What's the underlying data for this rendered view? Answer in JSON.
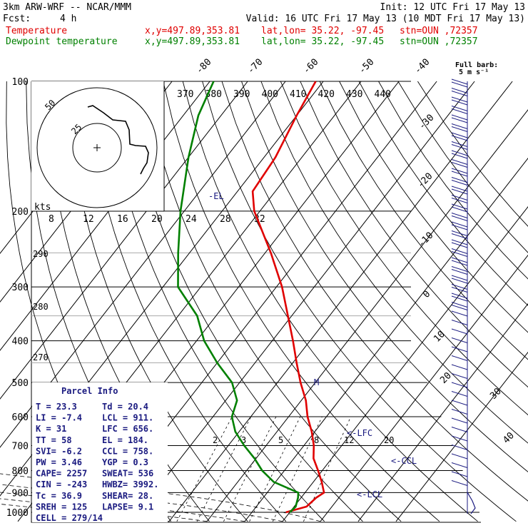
{
  "header": {
    "model": "3km ARW-WRF -- NCAR/MMM",
    "fcst_label": "Fcst:",
    "fcst_value": "4 h",
    "init": "Init: 12 UTC Fri 17 May 13",
    "valid": "Valid: 16 UTC Fri 17 May 13 (10 MDT Fri 17 May 13)",
    "temp_line": {
      "name": "Temperature",
      "xy": "x,y=497.89,353.81",
      "latlon": "lat,lon= 35.22, -97.45",
      "stn": "stn=OUN ,72357"
    },
    "dew_line": {
      "name": "Dewpoint temperature",
      "xy": "x,y=497.89,353.81",
      "latlon": "lat,lon= 35.22, -97.45",
      "stn": "stn=OUN ,72357"
    }
  },
  "barb_legend": {
    "line1": "Full barb:",
    "line2": "5 m s⁻¹"
  },
  "pressure_labels": [
    "100",
    "200",
    "300",
    "400",
    "500",
    "600",
    "700",
    "800",
    "900",
    "1000"
  ],
  "theta_labels": [
    "370",
    "380",
    "390",
    "400",
    "410",
    "420",
    "430",
    "440"
  ],
  "temp_labels_top": [
    "-80",
    "-70",
    "-60",
    "-50",
    "-40"
  ],
  "temp_labels_right": [
    "-30",
    "-20",
    "-10",
    "0",
    "10"
  ],
  "temp_labels_low": [
    "20",
    "30",
    "40"
  ],
  "mixing_labels": [
    "2",
    "3",
    "5",
    "8",
    "12",
    "20"
  ],
  "thetae_labels": [
    "290",
    "280",
    "270"
  ],
  "hodograph": {
    "kts_label": "kts",
    "ring_labels": [
      "50",
      "25"
    ],
    "x_ticks": [
      "8",
      "12",
      "16",
      "20",
      "24",
      "28",
      "32"
    ]
  },
  "markers": {
    "el": "-EL",
    "lfc": "<-LFC",
    "ccl": "<-CCL",
    "lcl": "<-LCL",
    "m": "M"
  },
  "parcel": {
    "title": "Parcel Info",
    "rows": [
      [
        "T  =   23.3",
        "Td =  20.4"
      ],
      [
        "LI =   -7.4",
        "LCL =  911."
      ],
      [
        "K  =     31",
        "LFC = 656."
      ],
      [
        "TT =     58",
        "EL  =  184."
      ],
      [
        "SVI=   -6.2",
        "CCL =  758."
      ],
      [
        "PW =   3.46",
        "YGP =   0.3"
      ],
      [
        "CAPE=  2257",
        "SWEAT=  536"
      ],
      [
        "CIN =  -243",
        "HWBZ= 3992."
      ],
      [
        "Tc =   36.9",
        "SHEAR=  28."
      ],
      [
        "SREH =  125",
        "LAPSE=  9.1"
      ],
      [
        "CELL = 279/14",
        ""
      ]
    ]
  },
  "colors": {
    "temperature": "#e00000",
    "dewpoint": "#008000",
    "text_label": "#1a1a80"
  },
  "chart_data": {
    "type": "line",
    "chart_kind": "skew-T log-p sounding",
    "yscale": "log",
    "ylim": [
      1000,
      100
    ],
    "series": [
      {
        "name": "Temperature",
        "points": [
          [
            1000,
            19
          ],
          [
            970,
            23.3
          ],
          [
            925,
            24
          ],
          [
            900,
            25
          ],
          [
            850,
            22.2
          ],
          [
            800,
            18.9
          ],
          [
            750,
            15.2
          ],
          [
            700,
            12.6
          ],
          [
            650,
            9.2
          ],
          [
            600,
            5.0
          ],
          [
            550,
            1.2
          ],
          [
            500,
            -3.9
          ],
          [
            450,
            -9.0
          ],
          [
            400,
            -14.5
          ],
          [
            350,
            -21.0
          ],
          [
            300,
            -28.5
          ],
          [
            250,
            -38.5
          ],
          [
            200,
            -51.5
          ],
          [
            180,
            -56
          ],
          [
            150,
            -57
          ],
          [
            120,
            -60
          ],
          [
            100,
            -62
          ]
        ]
      },
      {
        "name": "Dewpoint temperature",
        "points": [
          [
            1000,
            20
          ],
          [
            970,
            20.4
          ],
          [
            925,
            19.2
          ],
          [
            900,
            18.2
          ],
          [
            850,
            9.5
          ],
          [
            800,
            4.1
          ],
          [
            750,
            -0.4
          ],
          [
            700,
            -5.8
          ],
          [
            650,
            -11
          ],
          [
            600,
            -15
          ],
          [
            550,
            -17
          ],
          [
            500,
            -22
          ],
          [
            450,
            -30
          ],
          [
            400,
            -38
          ],
          [
            350,
            -45
          ],
          [
            300,
            -56
          ],
          [
            250,
            -63
          ],
          [
            200,
            -71
          ],
          [
            150,
            -80
          ],
          [
            120,
            -86
          ],
          [
            100,
            -89
          ]
        ]
      }
    ],
    "parcel": {
      "T": 23.3,
      "Td": 20.4,
      "LI": -7.4,
      "LCL": 911,
      "K": 31,
      "LFC": 656,
      "TT": 58,
      "EL": 184,
      "SVI": -6.2,
      "CCL": 758,
      "PW": 3.46,
      "YGP": 0.3,
      "CAPE": 2257,
      "SWEAT": 536,
      "CIN": -243,
      "HWBZ": 3992,
      "Tc": 36.9,
      "SHEAR": 28,
      "SREH": 125,
      "LAPSE": 9.1,
      "CELL": "279/14"
    }
  }
}
